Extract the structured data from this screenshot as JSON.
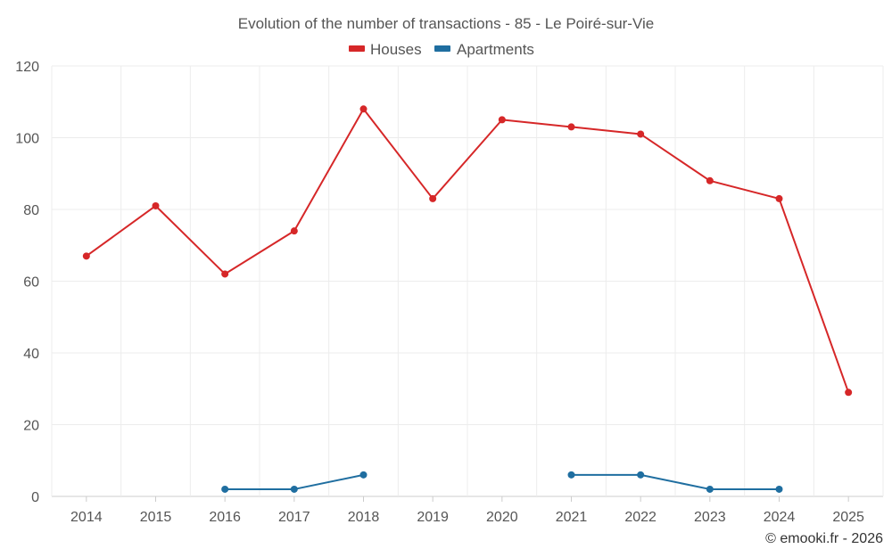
{
  "chart_data": {
    "type": "line",
    "title": "Evolution of the number of transactions - 85 - Le Poiré-sur-Vie",
    "categories": [
      "2014",
      "2015",
      "2016",
      "2017",
      "2018",
      "2019",
      "2020",
      "2021",
      "2022",
      "2023",
      "2024",
      "2025"
    ],
    "series": [
      {
        "name": "Houses",
        "color": "#d62728",
        "values": [
          67,
          81,
          62,
          74,
          108,
          83,
          105,
          103,
          101,
          88,
          83,
          29
        ]
      },
      {
        "name": "Apartments",
        "color": "#1f6ea0",
        "values": [
          null,
          null,
          2,
          2,
          6,
          null,
          null,
          6,
          6,
          2,
          2,
          null
        ]
      }
    ],
    "ylim": [
      0,
      120
    ],
    "yticks": [
      0,
      20,
      40,
      60,
      80,
      100,
      120
    ],
    "xlabel": "",
    "ylabel": "",
    "grid": true,
    "legend_position": "top-center"
  },
  "credit": "© emooki.fr - 2026"
}
